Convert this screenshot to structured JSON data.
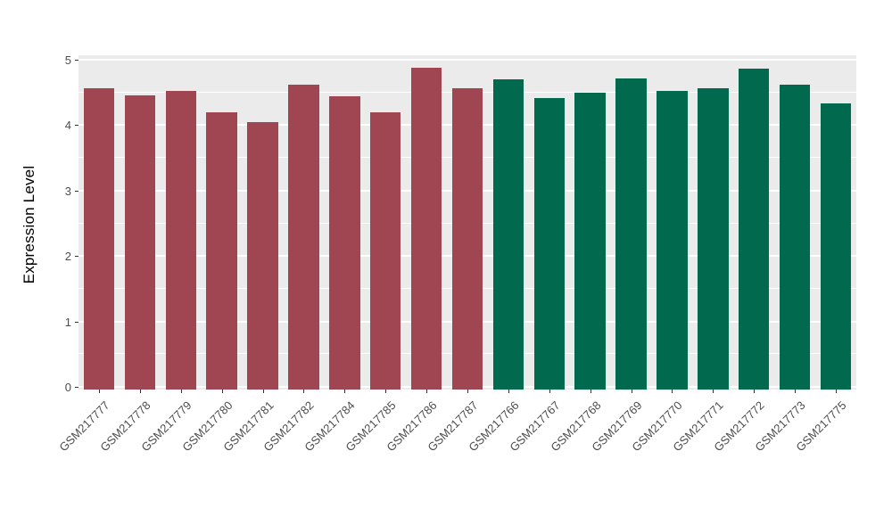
{
  "chart_data": {
    "type": "bar",
    "title": "",
    "xlabel": "",
    "ylabel": "Expression Level",
    "ylim": [
      0,
      5
    ],
    "y_ticks": [
      0,
      1,
      2,
      3,
      4,
      5
    ],
    "y_tick_labels": [
      "0",
      "1",
      "2",
      "3",
      "4",
      "5"
    ],
    "grid": "on",
    "legend_position": "none",
    "categories": [
      "GSM217777",
      "GSM217778",
      "GSM217779",
      "GSM217780",
      "GSM217781",
      "GSM217782",
      "GSM217784",
      "GSM217785",
      "GSM217786",
      "GSM217787",
      "GSM217766",
      "GSM217767",
      "GSM217768",
      "GSM217769",
      "GSM217770",
      "GSM217771",
      "GSM217772",
      "GSM217773",
      "GSM217775"
    ],
    "values": [
      4.56,
      4.46,
      4.52,
      4.2,
      4.05,
      4.62,
      4.44,
      4.2,
      4.88,
      4.56,
      4.7,
      4.41,
      4.5,
      4.72,
      4.53,
      4.57,
      4.87,
      4.62,
      4.33
    ],
    "groups": [
      "maroon",
      "maroon",
      "maroon",
      "maroon",
      "maroon",
      "maroon",
      "maroon",
      "maroon",
      "maroon",
      "maroon",
      "green",
      "green",
      "green",
      "green",
      "green",
      "green",
      "green",
      "green",
      "green"
    ],
    "group_colors": {
      "maroon": "#A04552",
      "green": "#00694E"
    },
    "panel_background": "#EBEBEB",
    "gridline_color": "#FFFFFF",
    "axis_text_color": "#4D4D4D"
  }
}
